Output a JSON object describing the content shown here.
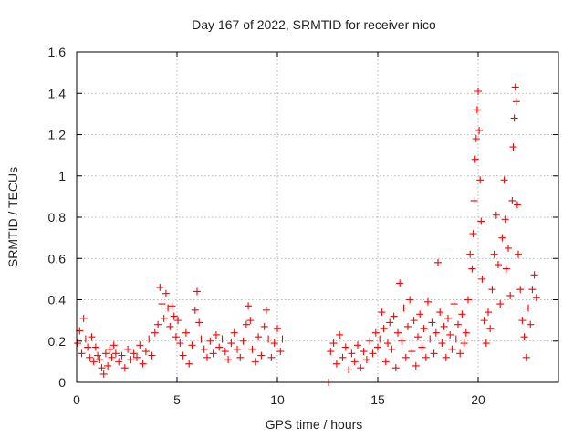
{
  "chart_data": {
    "type": "scatter",
    "title": "Day 167 of 2022, SRMTID for receiver nico",
    "xlabel": "GPS time / hours",
    "ylabel": "SRMTID / TECUs",
    "xlim": [
      0,
      24
    ],
    "ylim": [
      0,
      1.6
    ],
    "x_ticks": [
      0,
      5,
      10,
      15,
      20
    ],
    "x_tick_labels": [
      "0",
      "5",
      "10",
      "15",
      "20"
    ],
    "y_ticks": [
      0,
      0.2,
      0.4,
      0.6,
      0.8,
      1.0,
      1.2,
      1.4,
      1.6
    ],
    "y_tick_labels": [
      "0",
      "0.2",
      "0.4",
      "0.6",
      "0.8",
      "1",
      "1.2",
      "1.4",
      "1.6"
    ],
    "grid": true,
    "marker": "plus",
    "color": "#ff0000",
    "series": [
      {
        "name": "SRMTID",
        "points": [
          [
            0.05,
            0.19
          ],
          [
            0.15,
            0.25
          ],
          [
            0.25,
            0.14
          ],
          [
            0.35,
            0.31
          ],
          [
            0.45,
            0.21
          ],
          [
            0.55,
            0.17
          ],
          [
            0.65,
            0.12
          ],
          [
            0.75,
            0.22
          ],
          [
            0.85,
            0.1
          ],
          [
            0.95,
            0.17
          ],
          [
            1.05,
            0.13
          ],
          [
            1.15,
            0.11
          ],
          [
            1.25,
            0.07
          ],
          [
            1.35,
            0.04
          ],
          [
            1.45,
            0.14
          ],
          [
            1.55,
            0.08
          ],
          [
            1.65,
            0.16
          ],
          [
            1.75,
            0.12
          ],
          [
            1.85,
            0.18
          ],
          [
            1.95,
            0.14
          ],
          [
            2.1,
            0.1
          ],
          [
            2.25,
            0.13
          ],
          [
            2.4,
            0.07
          ],
          [
            2.55,
            0.16
          ],
          [
            2.7,
            0.11
          ],
          [
            2.85,
            0.14
          ],
          [
            3.0,
            0.12
          ],
          [
            3.15,
            0.18
          ],
          [
            3.3,
            0.09
          ],
          [
            3.45,
            0.15
          ],
          [
            3.6,
            0.21
          ],
          [
            3.75,
            0.13
          ],
          [
            3.9,
            0.24
          ],
          [
            4.05,
            0.28
          ],
          [
            4.15,
            0.46
          ],
          [
            4.25,
            0.38
          ],
          [
            4.35,
            0.31
          ],
          [
            4.45,
            0.43
          ],
          [
            4.55,
            0.36
          ],
          [
            4.65,
            0.27
          ],
          [
            4.75,
            0.37
          ],
          [
            4.85,
            0.32
          ],
          [
            4.95,
            0.22
          ],
          [
            5.05,
            0.3
          ],
          [
            5.15,
            0.19
          ],
          [
            5.3,
            0.13
          ],
          [
            5.45,
            0.24
          ],
          [
            5.6,
            0.09
          ],
          [
            5.75,
            0.18
          ],
          [
            5.9,
            0.35
          ],
          [
            6.0,
            0.44
          ],
          [
            6.1,
            0.29
          ],
          [
            6.2,
            0.21
          ],
          [
            6.35,
            0.16
          ],
          [
            6.5,
            0.12
          ],
          [
            6.65,
            0.2
          ],
          [
            6.8,
            0.14
          ],
          [
            6.95,
            0.23
          ],
          [
            7.1,
            0.17
          ],
          [
            7.25,
            0.21
          ],
          [
            7.4,
            0.15
          ],
          [
            7.55,
            0.11
          ],
          [
            7.7,
            0.19
          ],
          [
            7.85,
            0.24
          ],
          [
            8.0,
            0.16
          ],
          [
            8.15,
            0.12
          ],
          [
            8.3,
            0.2
          ],
          [
            8.45,
            0.28
          ],
          [
            8.55,
            0.37
          ],
          [
            8.65,
            0.3
          ],
          [
            8.75,
            0.16
          ],
          [
            8.9,
            0.1
          ],
          [
            9.05,
            0.22
          ],
          [
            9.2,
            0.13
          ],
          [
            9.35,
            0.27
          ],
          [
            9.45,
            0.35
          ],
          [
            9.55,
            0.21
          ],
          [
            9.7,
            0.12
          ],
          [
            9.85,
            0.19
          ],
          [
            10.0,
            0.26
          ],
          [
            10.15,
            0.15
          ],
          [
            10.25,
            0.21
          ],
          [
            12.55,
            0.0
          ],
          [
            12.65,
            0.15
          ],
          [
            12.8,
            0.19
          ],
          [
            12.95,
            0.09
          ],
          [
            13.1,
            0.23
          ],
          [
            13.25,
            0.12
          ],
          [
            13.4,
            0.17
          ],
          [
            13.55,
            0.06
          ],
          [
            13.7,
            0.14
          ],
          [
            13.85,
            0.1
          ],
          [
            14.0,
            0.18
          ],
          [
            14.15,
            0.07
          ],
          [
            14.3,
            0.15
          ],
          [
            14.45,
            0.11
          ],
          [
            14.6,
            0.2
          ],
          [
            14.75,
            0.14
          ],
          [
            14.9,
            0.24
          ],
          [
            15.0,
            0.17
          ],
          [
            15.1,
            0.21
          ],
          [
            15.2,
            0.34
          ],
          [
            15.3,
            0.26
          ],
          [
            15.4,
            0.1
          ],
          [
            15.5,
            0.19
          ],
          [
            15.6,
            0.29
          ],
          [
            15.7,
            0.16
          ],
          [
            15.8,
            0.32
          ],
          [
            15.9,
            0.07
          ],
          [
            16.0,
            0.24
          ],
          [
            16.1,
            0.48
          ],
          [
            16.2,
            0.2
          ],
          [
            16.3,
            0.36
          ],
          [
            16.4,
            0.12
          ],
          [
            16.5,
            0.27
          ],
          [
            16.6,
            0.4
          ],
          [
            16.7,
            0.15
          ],
          [
            16.8,
            0.3
          ],
          [
            16.9,
            0.08
          ],
          [
            17.0,
            0.22
          ],
          [
            17.1,
            0.33
          ],
          [
            17.2,
            0.17
          ],
          [
            17.3,
            0.26
          ],
          [
            17.4,
            0.12
          ],
          [
            17.5,
            0.39
          ],
          [
            17.6,
            0.21
          ],
          [
            17.7,
            0.29
          ],
          [
            17.8,
            0.14
          ],
          [
            17.9,
            0.24
          ],
          [
            18.0,
            0.58
          ],
          [
            18.1,
            0.34
          ],
          [
            18.2,
            0.19
          ],
          [
            18.3,
            0.27
          ],
          [
            18.4,
            0.12
          ],
          [
            18.5,
            0.31
          ],
          [
            18.6,
            0.23
          ],
          [
            18.7,
            0.16
          ],
          [
            18.8,
            0.38
          ],
          [
            18.9,
            0.21
          ],
          [
            19.0,
            0.28
          ],
          [
            19.1,
            0.14
          ],
          [
            19.2,
            0.33
          ],
          [
            19.3,
            0.19
          ],
          [
            19.4,
            0.24
          ],
          [
            19.5,
            0.4
          ],
          [
            19.6,
            0.62
          ],
          [
            19.7,
            0.55
          ],
          [
            19.75,
            0.72
          ],
          [
            19.8,
            0.88
          ],
          [
            19.85,
            1.08
          ],
          [
            19.9,
            1.18
          ],
          [
            19.95,
            1.32
          ],
          [
            20.0,
            1.41
          ],
          [
            20.05,
            1.22
          ],
          [
            20.1,
            0.98
          ],
          [
            20.15,
            0.78
          ],
          [
            20.2,
            0.5
          ],
          [
            20.3,
            0.3
          ],
          [
            20.4,
            0.19
          ],
          [
            20.5,
            0.34
          ],
          [
            20.6,
            0.26
          ],
          [
            20.7,
            0.45
          ],
          [
            20.8,
            0.62
          ],
          [
            20.9,
            0.81
          ],
          [
            21.0,
            0.57
          ],
          [
            21.1,
            0.38
          ],
          [
            21.2,
            0.7
          ],
          [
            21.3,
            0.98
          ],
          [
            21.35,
            0.79
          ],
          [
            21.4,
            0.55
          ],
          [
            21.5,
            0.65
          ],
          [
            21.6,
            0.42
          ],
          [
            21.7,
            0.88
          ],
          [
            21.75,
            1.14
          ],
          [
            21.8,
            1.28
          ],
          [
            21.85,
            1.43
          ],
          [
            21.9,
            1.36
          ],
          [
            21.95,
            0.86
          ],
          [
            22.0,
            0.62
          ],
          [
            22.1,
            0.45
          ],
          [
            22.2,
            0.3
          ],
          [
            22.3,
            0.22
          ],
          [
            22.4,
            0.12
          ],
          [
            22.5,
            0.36
          ],
          [
            22.6,
            0.28
          ],
          [
            22.7,
            0.45
          ],
          [
            22.8,
            0.52
          ],
          [
            22.9,
            0.41
          ]
        ]
      }
    ]
  }
}
